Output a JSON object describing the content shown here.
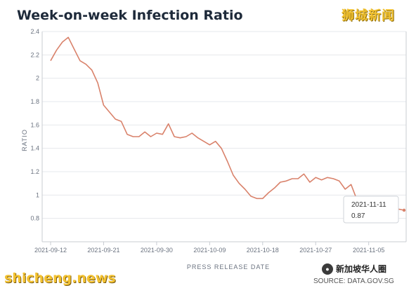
{
  "page": {
    "title": "Week-on-week Infection Ratio",
    "brand_top": "狮城新闻",
    "brand_bottom": "shicheng.news",
    "wechat_label": "新加坡华人圈",
    "source": "SOURCE: DATA.GOV.SG"
  },
  "tooltip": {
    "date": "2021-11-11",
    "value": "0.87"
  },
  "colors": {
    "line": "#d9826b",
    "grid": "#e6e8ec",
    "axis": "#c8ccd2",
    "title": "#1e2a3a"
  },
  "chart_data": {
    "type": "line",
    "xlabel": "PRESS RELEASE DATE",
    "ylabel": "RATIO",
    "ylim": [
      0.6,
      2.4
    ],
    "y_ticks": [
      "0.8",
      "1",
      "1.2",
      "1.4",
      "1.6",
      "1.8",
      "2",
      "2.2",
      "2.4"
    ],
    "x_ticks": [
      "2021-09-12",
      "2021-09-21",
      "2021-09-30",
      "2021-10-09",
      "2021-10-18",
      "2021-10-27",
      "2021-11-05"
    ],
    "x": [
      "2021-09-12",
      "2021-09-13",
      "2021-09-14",
      "2021-09-15",
      "2021-09-16",
      "2021-09-17",
      "2021-09-18",
      "2021-09-19",
      "2021-09-20",
      "2021-09-21",
      "2021-09-22",
      "2021-09-23",
      "2021-09-24",
      "2021-09-25",
      "2021-09-26",
      "2021-09-27",
      "2021-09-28",
      "2021-09-29",
      "2021-09-30",
      "2021-10-01",
      "2021-10-02",
      "2021-10-03",
      "2021-10-04",
      "2021-10-05",
      "2021-10-06",
      "2021-10-07",
      "2021-10-08",
      "2021-10-09",
      "2021-10-10",
      "2021-10-11",
      "2021-10-12",
      "2021-10-13",
      "2021-10-14",
      "2021-10-15",
      "2021-10-16",
      "2021-10-17",
      "2021-10-18",
      "2021-10-19",
      "2021-10-20",
      "2021-10-21",
      "2021-10-22",
      "2021-10-23",
      "2021-10-24",
      "2021-10-25",
      "2021-10-26",
      "2021-10-27",
      "2021-10-28",
      "2021-10-29",
      "2021-10-30",
      "2021-10-31",
      "2021-11-01",
      "2021-11-02",
      "2021-11-03",
      "2021-11-04",
      "2021-11-05",
      "2021-11-06",
      "2021-11-07",
      "2021-11-08",
      "2021-11-09",
      "2021-11-10",
      "2021-11-11"
    ],
    "values": [
      2.15,
      2.24,
      2.31,
      2.35,
      2.25,
      2.15,
      2.12,
      2.07,
      1.96,
      1.77,
      1.71,
      1.65,
      1.63,
      1.52,
      1.5,
      1.5,
      1.54,
      1.5,
      1.53,
      1.52,
      1.61,
      1.5,
      1.49,
      1.5,
      1.53,
      1.49,
      1.46,
      1.43,
      1.46,
      1.4,
      1.29,
      1.17,
      1.1,
      1.05,
      0.99,
      0.97,
      0.97,
      1.02,
      1.06,
      1.11,
      1.12,
      1.14,
      1.14,
      1.18,
      1.11,
      1.15,
      1.13,
      1.15,
      1.14,
      1.12,
      1.05,
      1.09,
      0.96,
      0.94,
      0.92,
      0.93,
      0.91,
      0.9,
      0.89,
      0.88,
      0.87
    ]
  }
}
